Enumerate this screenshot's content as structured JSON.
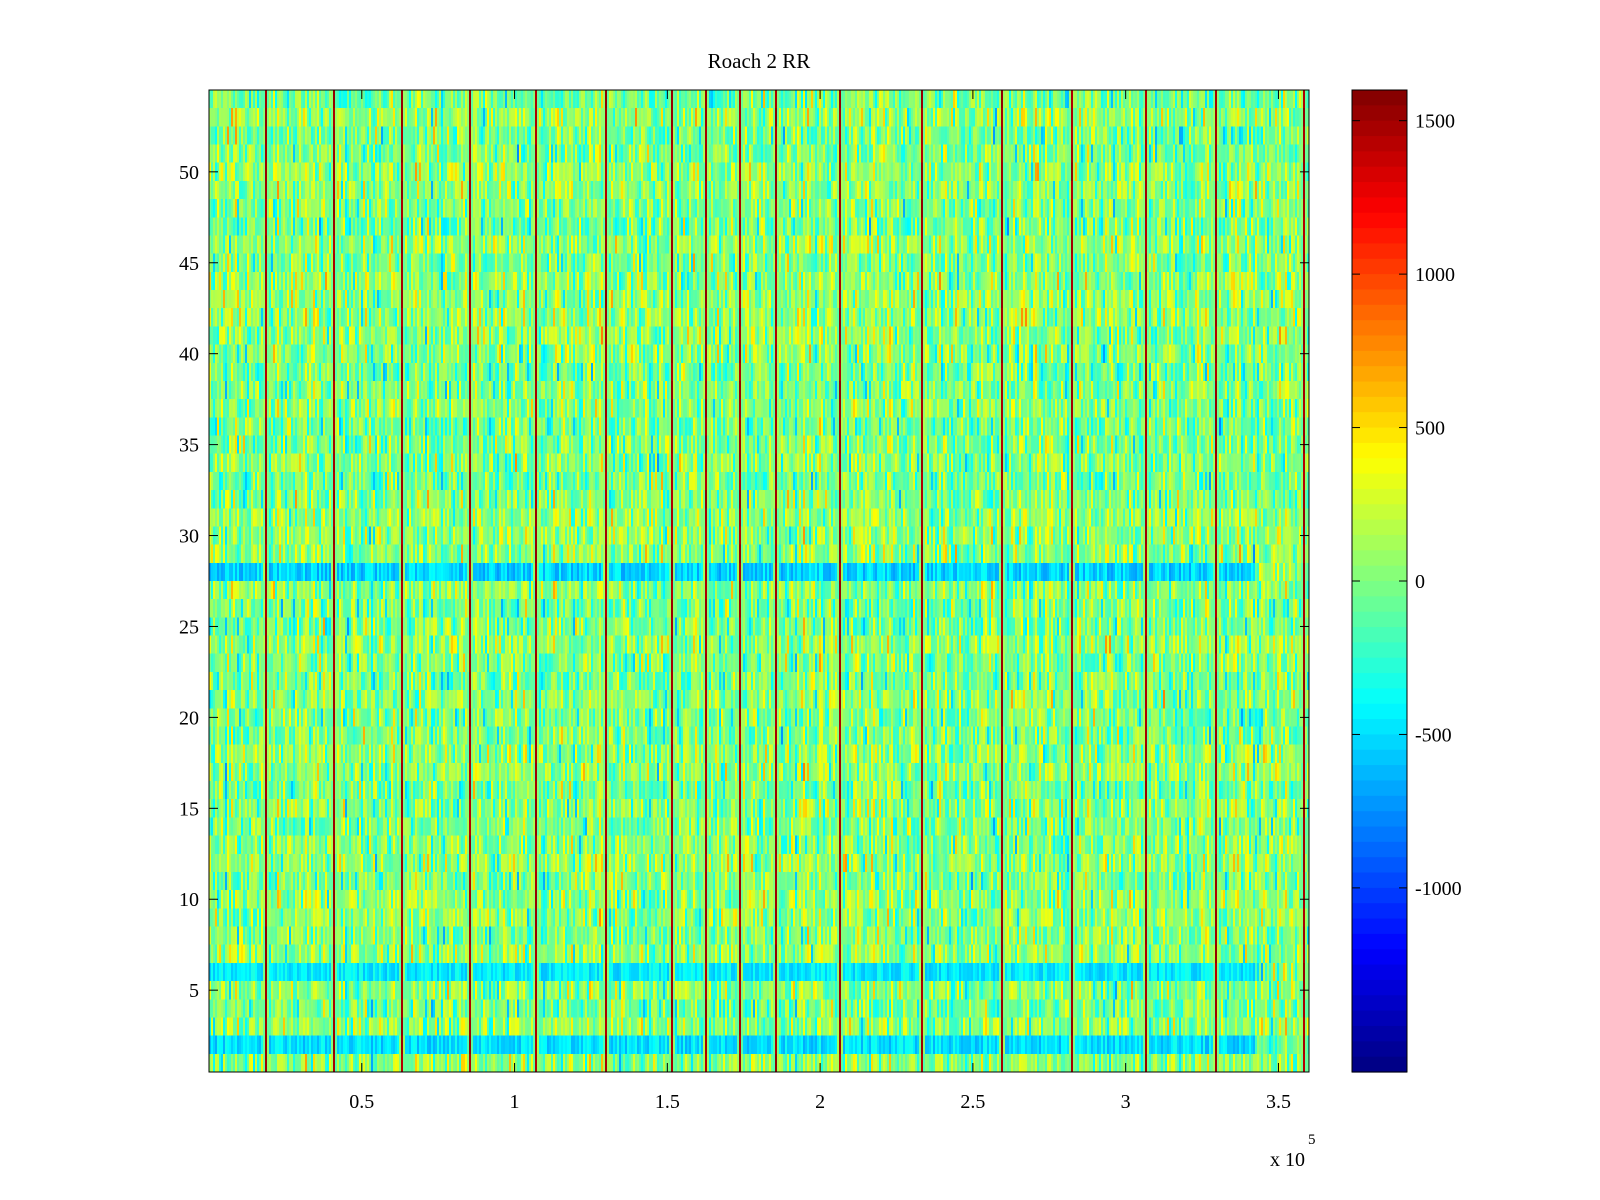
{
  "chart_data": {
    "type": "heatmap",
    "title": "Roach 2 RR",
    "xlabel": "",
    "ylabel": "",
    "x_axis": {
      "range": [
        0,
        360000
      ],
      "multiplier_label": "x 10",
      "multiplier_exponent": "5",
      "ticks": [
        {
          "value": 50000,
          "label": "0.5"
        },
        {
          "value": 100000,
          "label": "1"
        },
        {
          "value": 150000,
          "label": "1.5"
        },
        {
          "value": 200000,
          "label": "2"
        },
        {
          "value": 250000,
          "label": "2.5"
        },
        {
          "value": 300000,
          "label": "3"
        },
        {
          "value": 350000,
          "label": "3.5"
        }
      ]
    },
    "y_axis": {
      "range": [
        0.5,
        54.5
      ],
      "ticks": [
        {
          "value": 5,
          "label": "5"
        },
        {
          "value": 10,
          "label": "10"
        },
        {
          "value": 15,
          "label": "15"
        },
        {
          "value": 20,
          "label": "20"
        },
        {
          "value": 25,
          "label": "25"
        },
        {
          "value": 30,
          "label": "30"
        },
        {
          "value": 35,
          "label": "35"
        },
        {
          "value": 40,
          "label": "40"
        },
        {
          "value": 45,
          "label": "45"
        },
        {
          "value": 50,
          "label": "50"
        }
      ]
    },
    "rows": 54,
    "color_range": [
      -1600,
      1600
    ],
    "colormap": "jet",
    "colorbar": {
      "placement": "right",
      "ticks": [
        {
          "value": 1500,
          "label": "1500"
        },
        {
          "value": 1000,
          "label": "1000"
        },
        {
          "value": 500,
          "label": "500"
        },
        {
          "value": 0,
          "label": "0"
        },
        {
          "value": -500,
          "label": "-500"
        },
        {
          "value": -1000,
          "label": "-1000"
        }
      ]
    },
    "typical_value_range": [
      -500,
      500
    ],
    "high_value_columns_x": [
      18000,
      40500,
      63000,
      85000,
      107000,
      129500,
      151500,
      162000,
      173500,
      185000,
      206000,
      233000,
      259000,
      282000,
      306000,
      329500,
      358000
    ],
    "high_value": 1550,
    "low_value_rows": [
      {
        "row": 28,
        "value": -650
      },
      {
        "row": 2,
        "value": -600
      },
      {
        "row": 6,
        "value": -550
      }
    ],
    "grid": false
  }
}
